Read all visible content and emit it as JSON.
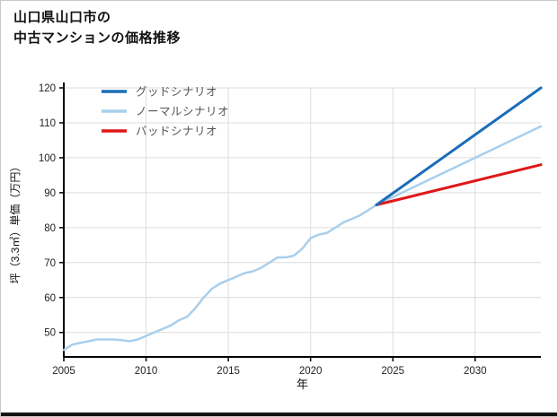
{
  "title": {
    "line1": "山口県山口市の",
    "line2": "中古マンションの価格推移"
  },
  "chart_data": {
    "type": "line",
    "title": "山口県山口市の中古マンションの価格推移",
    "xlabel": "年",
    "ylabel": "坪（3.3㎡）単価（万円）",
    "xlim": [
      2005,
      2034
    ],
    "ylim": [
      43,
      120
    ],
    "xticks": [
      2005,
      2010,
      2015,
      2020,
      2025,
      2030
    ],
    "yticks": [
      50,
      60,
      70,
      80,
      90,
      100,
      110,
      120
    ],
    "grid": true,
    "legend_position": "top-left",
    "colors": {
      "good": "#1b6db8",
      "normal": "#a9cfec",
      "bad": "#e01717",
      "grid": "#dcdcdc",
      "axis": "#000000",
      "tick_text": "#222222",
      "legend_text": "#555555"
    },
    "series": [
      {
        "id": "good",
        "name": "グッドシナリオ",
        "color": "#1b6db8",
        "x": [
          2024,
          2034
        ],
        "y": [
          86.5,
          120
        ]
      },
      {
        "id": "normal",
        "name": "ノーマルシナリオ",
        "color": "#a9cfec",
        "x": [
          2005,
          2005.5,
          2006,
          2006.5,
          2007,
          2007.5,
          2008,
          2008.5,
          2009,
          2009.5,
          2010,
          2010.5,
          2011,
          2011.5,
          2012,
          2012.5,
          2013,
          2013.5,
          2014,
          2014.5,
          2015,
          2015.5,
          2016,
          2016.5,
          2017,
          2017.5,
          2018,
          2018.5,
          2019,
          2019.5,
          2020,
          2020.5,
          2021,
          2021.5,
          2022,
          2022.5,
          2023,
          2023.5,
          2024,
          2034
        ],
        "y": [
          45,
          46.5,
          47,
          47.5,
          48,
          48,
          48,
          47.8,
          47.5,
          48,
          49,
          50,
          51,
          52,
          53.5,
          54.5,
          57,
          60,
          62.5,
          64,
          65,
          66,
          67,
          67.5,
          68.5,
          70,
          71.5,
          71.5,
          72,
          74,
          77,
          78,
          78.5,
          80,
          81.5,
          82.5,
          83.5,
          85,
          86.5,
          109
        ]
      },
      {
        "id": "bad",
        "name": "バッドシナリオ",
        "color": "#e01717",
        "x": [
          2024,
          2034
        ],
        "y": [
          86.5,
          98
        ]
      }
    ]
  }
}
